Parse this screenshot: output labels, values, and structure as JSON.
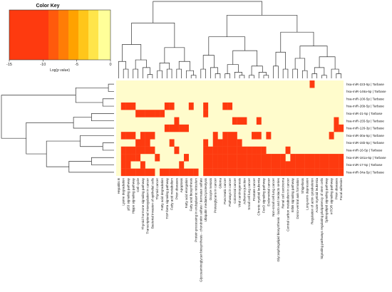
{
  "chart_data": {
    "type": "heatmap",
    "title": "",
    "legend": {
      "title": "Color Key",
      "xlabel": "Log(p value)",
      "ticks": [
        "-15",
        "-10",
        "-5",
        "0"
      ],
      "range": [
        -15,
        0
      ],
      "colors": [
        "#fe3a0f",
        "#ff5a0c",
        "#ff7d06",
        "#ffa200",
        "#ffc61a",
        "#ffe54a",
        "#ffff99"
      ],
      "background_color": "#fffccc"
    },
    "rows": [
      "hsa-miR-223-5p | Tarbase",
      "hsa-miR-146a-5p | Tarbase",
      "hsa-miR-100-5p | Tarbase",
      "hsa-miR-26b-5p | Tarbase",
      "hsa-miR-21-5p | Tarbase",
      "hsa-miR-155-5p | Tarbase",
      "hsa-miR-126-3p | Tarbase",
      "hsa-miR-30a-5p | Tarbase",
      "hsa-miR-15b-5p | Tarbase",
      "hsa-miR-16-5p | Tarbase",
      "hsa-miR-181a-5p | Tarbase",
      "hsa-miR-17-5p | Tarbase",
      "hsa-miR-34a-5p | Tarbase"
    ],
    "columns": [
      "Hepatitis B",
      "Lysine degradation",
      "p53 signaling pathway",
      "Hippo signaling pathway",
      "Cell cycle",
      "Thyroid hormone signaling pathway",
      "Transcriptional misregulation in cancer",
      "Bacterial invasion of epithelial cells",
      "Thyroid cancer",
      "Fatty acid degradation",
      "TGF-beta signaling pathway",
      "Fatty acid metabolism",
      "Prion diseases",
      "Apoptosis",
      "Fatty acid elongation",
      "Fatty acid biosynthesis",
      "Protein processing in endoplasmic reticulum",
      "Glycosaminoglycan biosynthesis - chondroitin sulfate / dermatan sulfate",
      "Ubiquitin mediated proteolysis",
      "Oocyte meiosis",
      "Proteoglycans in cancer",
      "Glioma",
      "Pancreatic cancer",
      "Pathways in cancer",
      "Colorectal cancer",
      "Viral carcinogenesis",
      "Adherens junction",
      "Small cell lung cancer",
      "Prostate cancer",
      "Chronic myeloid leukemia",
      "FoxO signaling pathway",
      "Endometrial cancer",
      "Non-small cell lung cancer",
      "Glycosphingolipid biosynthesis - lacto and neolacto series",
      "Renal cell carcinoma",
      "Central carbon metabolism in cancer",
      "ErbB signaling pathway",
      "Dorso-ventral axis formation",
      "Shigellosis",
      "Long-term depression",
      "Regulation of actin cytoskeleton",
      "Acute myeloid leukemia",
      "Signaling pathways regulating pluripotency of stem cells",
      "Sphingolipid signaling pathway",
      "mTOR signaling pathway",
      "Prion diseases",
      "Focal adhesion"
    ],
    "cells": [
      "...............................................",
      "...............................................",
      "...............................................",
      "...............................................",
      "...............................................",
      "...............................................",
      "...............................................",
      "...............................................",
      "...............................................",
      "...............................................",
      "...............................................",
      "...............................................",
      "..............................................."
    ],
    "values": [
      [
        0,
        0,
        0,
        0,
        0,
        0,
        0,
        0,
        0,
        0,
        0,
        0,
        0,
        0,
        0,
        0,
        0,
        0,
        0,
        0,
        0,
        0,
        0,
        0,
        0,
        0,
        0,
        0,
        0,
        0,
        0,
        0,
        0,
        0,
        0,
        0,
        0,
        0,
        0,
        0,
        -15,
        0,
        0,
        0,
        0,
        0,
        0
      ],
      [
        0,
        0,
        0,
        0,
        0,
        0,
        0,
        0,
        0,
        0,
        0,
        0,
        0,
        0,
        0,
        0,
        0,
        0,
        0,
        0,
        0,
        0,
        0,
        0,
        0,
        0,
        0,
        0,
        0,
        0,
        0,
        0,
        0,
        0,
        0,
        0,
        0,
        0,
        0,
        0,
        0,
        0,
        0,
        0,
        0,
        0,
        0
      ],
      [
        0,
        0,
        0,
        0,
        0,
        0,
        0,
        0,
        0,
        0,
        0,
        0,
        0,
        0,
        0,
        0,
        0,
        0,
        0,
        0,
        0,
        0,
        0,
        0,
        0,
        0,
        0,
        0,
        0,
        0,
        0,
        0,
        0,
        0,
        0,
        0,
        0,
        0,
        0,
        0,
        0,
        0,
        0,
        0,
        0,
        0,
        0
      ],
      [
        0,
        -15,
        -15,
        -15,
        0,
        0,
        0,
        0,
        0,
        0,
        -15,
        -15,
        0,
        0,
        0,
        -15,
        0,
        0,
        -15,
        0,
        0,
        0,
        -15,
        -15,
        0,
        0,
        0,
        0,
        0,
        0,
        0,
        0,
        0,
        0,
        0,
        0,
        0,
        0,
        0,
        0,
        0,
        0,
        0,
        0,
        0,
        0,
        0
      ],
      [
        0,
        0,
        0,
        0,
        -15,
        -15,
        -15,
        -15,
        -15,
        -15,
        0,
        0,
        0,
        0,
        0,
        0,
        0,
        0,
        -15,
        0,
        0,
        0,
        0,
        0,
        0,
        0,
        0,
        0,
        0,
        0,
        0,
        0,
        0,
        0,
        0,
        0,
        0,
        0,
        0,
        0,
        0,
        0,
        0,
        0,
        0,
        0,
        0
      ],
      [
        0,
        0,
        0,
        0,
        0,
        0,
        0,
        0,
        0,
        0,
        0,
        0,
        -15,
        0,
        0,
        0,
        0,
        0,
        0,
        0,
        0,
        0,
        0,
        0,
        -15,
        -15,
        -15,
        0,
        0,
        -15,
        0,
        0,
        0,
        0,
        0,
        0,
        0,
        0,
        0,
        0,
        0,
        0,
        0,
        0,
        0,
        -15,
        0
      ],
      [
        0,
        0,
        0,
        0,
        0,
        0,
        0,
        0,
        0,
        0,
        -15,
        -15,
        -15,
        -15,
        -15,
        0,
        0,
        0,
        0,
        0,
        0,
        0,
        0,
        0,
        0,
        0,
        0,
        0,
        0,
        0,
        0,
        0,
        0,
        0,
        0,
        0,
        0,
        0,
        0,
        0,
        0,
        0,
        0,
        0,
        0,
        -15,
        -15
      ],
      [
        0,
        -15,
        -15,
        -15,
        0,
        -15,
        -15,
        -15,
        0,
        0,
        0,
        0,
        0,
        0,
        0,
        0,
        0,
        0,
        0,
        0,
        -15,
        0,
        -15,
        -15,
        -15,
        0,
        0,
        0,
        -15,
        -15,
        0,
        -15,
        0,
        0,
        0,
        0,
        0,
        0,
        0,
        0,
        0,
        0,
        0,
        0,
        -15,
        0,
        0
      ],
      [
        0,
        0,
        0,
        0,
        -15,
        -15,
        -15,
        0,
        0,
        0,
        0,
        -15,
        0,
        0,
        0,
        0,
        0,
        0,
        -15,
        0,
        -15,
        -15,
        -15,
        -15,
        -15,
        -15,
        0,
        0,
        0,
        0,
        0,
        0,
        0,
        0,
        0,
        0,
        0,
        0,
        0,
        0,
        0,
        0,
        0,
        0,
        0,
        0,
        0
      ],
      [
        0,
        -15,
        -15,
        -15,
        -15,
        -15,
        -15,
        -15,
        0,
        0,
        0,
        0,
        -15,
        0,
        0,
        0,
        0,
        0,
        -15,
        -15,
        -15,
        -15,
        -15,
        -15,
        -15,
        -15,
        -15,
        -15,
        -15,
        -15,
        -15,
        0,
        0,
        0,
        0,
        -15,
        0,
        0,
        0,
        0,
        0,
        0,
        0,
        0,
        0,
        0,
        0
      ],
      [
        0,
        -15,
        -15,
        -15,
        -15,
        0,
        0,
        0,
        -15,
        0,
        0,
        0,
        0,
        0,
        -15,
        0,
        0,
        0,
        -15,
        -15,
        -15,
        -15,
        -15,
        -15,
        -15,
        -15,
        -15,
        -15,
        -15,
        -15,
        -15,
        -15,
        -15,
        -15,
        -15,
        0,
        -15,
        -15,
        -15,
        -15,
        -15,
        -15,
        -15,
        -15,
        -15,
        -15,
        -15
      ],
      [
        0,
        -15,
        -15,
        0,
        0,
        -15,
        0,
        0,
        0,
        0,
        0,
        0,
        0,
        -15,
        0,
        0,
        0,
        0,
        -15,
        -15,
        -15,
        -15,
        -15,
        -15,
        -15,
        -15,
        -15,
        -15,
        -15,
        -15,
        -15,
        -15,
        -15,
        -15,
        -15,
        -15,
        -15,
        -15,
        -15,
        -15,
        -15,
        -15,
        -15,
        -15,
        -15,
        -15,
        -15
      ],
      [
        0,
        -15,
        -15,
        -15,
        -15,
        -15,
        -15,
        -15,
        0,
        -15,
        -15,
        -15,
        -15,
        -15,
        -15,
        -15,
        -15,
        0,
        -15,
        -15,
        -15,
        -15,
        -15,
        -15,
        -15,
        -15,
        -15,
        -15,
        -15,
        -15,
        -15,
        -15,
        -15,
        -15,
        -15,
        -15,
        -15,
        -15,
        -15,
        -15,
        -15,
        -15,
        -15,
        -15,
        -15,
        -15,
        -15
      ]
    ]
  }
}
